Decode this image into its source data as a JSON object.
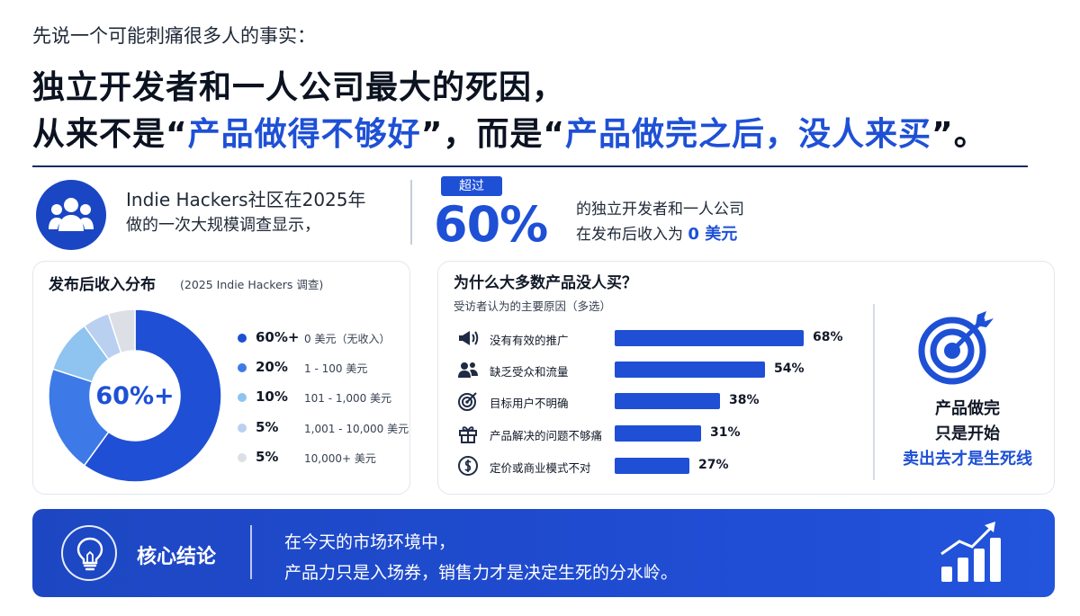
{
  "header": {
    "intro": "先说一个可能刺痛很多人的事实：",
    "headline_line1": "独立开发者和一人公司最大的死因，",
    "headline_line2_a": "从来不是“",
    "headline_line2_b": "产品做得不够好",
    "headline_line2_c": "”，而是“",
    "headline_line2_d": "产品做完之后，没人来买",
    "headline_line2_e": "”。"
  },
  "stat": {
    "survey_line1": "Indie Hackers社区在2025年",
    "survey_line2": "做的一次大规模调查显示，",
    "chip": "超过",
    "big_value": "60%",
    "line1": "的独立开发者和一人公司",
    "line2_prefix": "在发布后收入为 ",
    "line2_highlight": "0 美元"
  },
  "chart_data": [
    {
      "type": "pie",
      "title": "发布后收入分布",
      "subtitle": "(2025 Indie Hackers 调查)",
      "center_label": "60%+",
      "slices": [
        {
          "label": "0 美元（无收入）",
          "value_label": "60%+",
          "value": 60,
          "color": "#1f4fd4"
        },
        {
          "label": "1 - 100 美元",
          "value_label": "20%",
          "value": 20,
          "color": "#3d7ae8"
        },
        {
          "label": "101 - 1,000 美元",
          "value_label": "10%",
          "value": 10,
          "color": "#8fc3f0"
        },
        {
          "label": "1,001 - 10,000 美元",
          "value_label": "5%",
          "value": 5,
          "color": "#b9d0f0"
        },
        {
          "label": "10,000+ 美元",
          "value_label": "5%",
          "value": 5,
          "color": "#dcdfe6"
        }
      ],
      "legend_position": "right"
    },
    {
      "type": "bar",
      "orientation": "horizontal",
      "title": "为什么大多数产品没人买？",
      "subtitle": "受访者认为的主要原因（多选）",
      "categories": [
        "没有有效的推广",
        "缺乏受众和流量",
        "目标用户不明确",
        "产品解决的问题不够痛",
        "定价或商业模式不对"
      ],
      "values": [
        68,
        54,
        38,
        31,
        27
      ],
      "value_labels": [
        "68%",
        "54%",
        "38%",
        "31%",
        "27%"
      ],
      "icons": [
        "megaphone-icon",
        "users-icon",
        "target-icon",
        "gift-icon",
        "dollar-icon"
      ],
      "xlim": [
        0,
        68
      ],
      "color": "#1f4fd4"
    }
  ],
  "side_note": {
    "line1": "产品做完",
    "line2": "只是开始",
    "line3": "卖出去才是生死线"
  },
  "conclusion": {
    "label": "核心结论",
    "line1": "在今天的市场环境中，",
    "line2": "产品力只是入场券，销售力才是决定生死的分水岭。"
  },
  "colors": {
    "accent": "#1e50d6",
    "banner": "#1f4bd0",
    "text_dark": "#0b1220"
  }
}
